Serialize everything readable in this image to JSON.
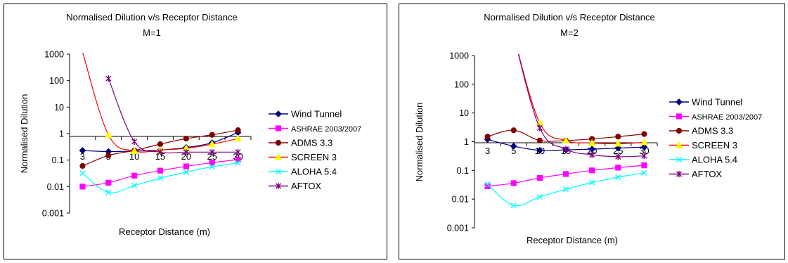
{
  "chart_data": [
    {
      "type": "line",
      "title": "Normalised Dilution v/s Receptor Distance",
      "subtitle": "M=1",
      "xlabel": "Receptor Distance (m)",
      "ylabel": "Normalised Dilution",
      "y_scale": "log",
      "ylim": [
        0.001,
        1000
      ],
      "yticks": [
        "0.001",
        "0.01",
        "0.1",
        "1",
        "10",
        "100",
        "1000"
      ],
      "categories": [
        "3",
        "5",
        "10",
        "15",
        "20",
        "25",
        "30"
      ],
      "grid": false,
      "legend_position": "right",
      "series": [
        {
          "name": "Wind Tunnel",
          "color": "#000080",
          "marker": "diamond",
          "values": [
            0.23,
            0.21,
            0.22,
            0.24,
            0.3,
            0.45,
            1.1
          ]
        },
        {
          "name": "ASHRAE 2003/2007",
          "color": "#FF00FF",
          "marker": "square",
          "values": [
            0.01,
            0.014,
            0.026,
            0.04,
            0.058,
            0.08,
            0.105
          ]
        },
        {
          "name": "ADMS 3.3",
          "color": "#800000",
          "marker": "circle",
          "values": [
            0.06,
            0.15,
            0.23,
            0.4,
            0.65,
            0.9,
            1.35
          ]
        },
        {
          "name": "SCREEN 3",
          "color": "#FF0000",
          "marker": "triangle",
          "marker_color": "#FFFF00",
          "values": [
            1200,
            0.9,
            0.22,
            0.24,
            0.28,
            0.4,
            0.65
          ]
        },
        {
          "name": "ALOHA 5.4",
          "color": "#00FFFF",
          "marker": "x",
          "values": [
            0.032,
            0.006,
            0.011,
            0.021,
            0.035,
            0.056,
            0.078
          ]
        },
        {
          "name": "AFTOX",
          "color": "#800080",
          "marker": "star",
          "values": [
            null,
            120,
            0.5,
            0.2,
            0.2,
            0.2,
            0.2
          ]
        }
      ]
    },
    {
      "type": "line",
      "title": "Normalised Dilution v/s Receptor Distance",
      "subtitle": "M=2",
      "xlabel": "Receptor Distance (m)",
      "ylabel": "Normalised Dilution",
      "y_scale": "log",
      "ylim": [
        0.001,
        1000
      ],
      "yticks": [
        "0.001",
        "0.01",
        "0.1",
        "1",
        "10",
        "100",
        "1000"
      ],
      "categories": [
        "3",
        "5",
        "10",
        "15",
        "20",
        "25",
        "30"
      ],
      "grid": false,
      "legend_position": "right",
      "series": [
        {
          "name": "Wind Tunnel",
          "color": "#000080",
          "marker": "diamond",
          "values": [
            1.2,
            0.7,
            0.5,
            0.52,
            0.55,
            0.6,
            0.65
          ]
        },
        {
          "name": "ASHRAE 2003/2007",
          "color": "#FF00FF",
          "marker": "square",
          "values": [
            0.028,
            0.036,
            0.055,
            0.075,
            0.1,
            0.125,
            0.15
          ]
        },
        {
          "name": "ADMS 3.3",
          "color": "#800000",
          "marker": "circle",
          "values": [
            1.5,
            2.5,
            1.1,
            1.1,
            1.25,
            1.5,
            1.85
          ]
        },
        {
          "name": "SCREEN 3",
          "color": "#FF0000",
          "marker": "triangle",
          "marker_color": "#FFFF00",
          "values": [
            null,
            5000,
            4.5,
            1.1,
            0.9,
            0.85,
            0.95
          ]
        },
        {
          "name": "ALOHA 5.4",
          "color": "#00FFFF",
          "marker": "x",
          "values": [
            0.033,
            0.006,
            0.012,
            0.022,
            0.038,
            0.058,
            0.082
          ]
        },
        {
          "name": "AFTOX",
          "color": "#800080",
          "marker": "star",
          "values": [
            null,
            5000,
            3.0,
            0.55,
            0.35,
            0.3,
            0.32
          ]
        }
      ]
    }
  ]
}
